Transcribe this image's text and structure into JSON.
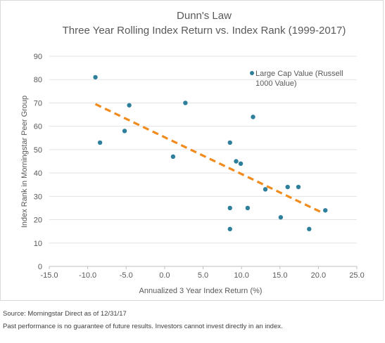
{
  "chart_data": {
    "type": "scatter",
    "title": "Dunn's Law",
    "subtitle": "Three Year Rolling Index Return vs. Index Rank (1999-2017)",
    "xlabel": "Annualized 3 Year Index Return (%)",
    "ylabel": "Index Rank in Morningstar Peer Group",
    "xlim": [
      -15,
      25
    ],
    "ylim": [
      0,
      90
    ],
    "xticks": [
      "-15.0",
      "-10.0",
      "-5.0",
      "0.0",
      "5.0",
      "10.0",
      "15.0",
      "20.0",
      "25.0"
    ],
    "yticks": [
      "0",
      "10",
      "20",
      "30",
      "40",
      "50",
      "60",
      "70",
      "80",
      "90"
    ],
    "grid": "horizontal",
    "legend_position": "top-right",
    "series": [
      {
        "name": "Large Cap Value (Russell 1000 Value)",
        "color": "#2e7f9c",
        "points": [
          {
            "x": -9.0,
            "y": 81
          },
          {
            "x": -8.4,
            "y": 53
          },
          {
            "x": -5.2,
            "y": 58
          },
          {
            "x": -4.6,
            "y": 69
          },
          {
            "x": 1.1,
            "y": 47
          },
          {
            "x": 2.7,
            "y": 70
          },
          {
            "x": 8.5,
            "y": 53
          },
          {
            "x": 8.5,
            "y": 25
          },
          {
            "x": 8.5,
            "y": 16
          },
          {
            "x": 9.3,
            "y": 45
          },
          {
            "x": 9.9,
            "y": 44
          },
          {
            "x": 10.8,
            "y": 25
          },
          {
            "x": 11.5,
            "y": 64
          },
          {
            "x": 13.1,
            "y": 33
          },
          {
            "x": 15.1,
            "y": 21
          },
          {
            "x": 16.0,
            "y": 34
          },
          {
            "x": 17.4,
            "y": 34
          },
          {
            "x": 18.8,
            "y": 16
          },
          {
            "x": 20.9,
            "y": 24
          }
        ]
      }
    ],
    "trendline": {
      "color": "#f28b1d",
      "style": "dashed",
      "x": [
        -9.0,
        20.5
      ],
      "y": [
        69.5,
        23
      ]
    }
  },
  "footnotes": {
    "source": "Source: Morningstar Direct as of 12/31/17",
    "disclaimer": "Past performance is no guarantee of future results. Investors cannot invest directly in an index."
  }
}
